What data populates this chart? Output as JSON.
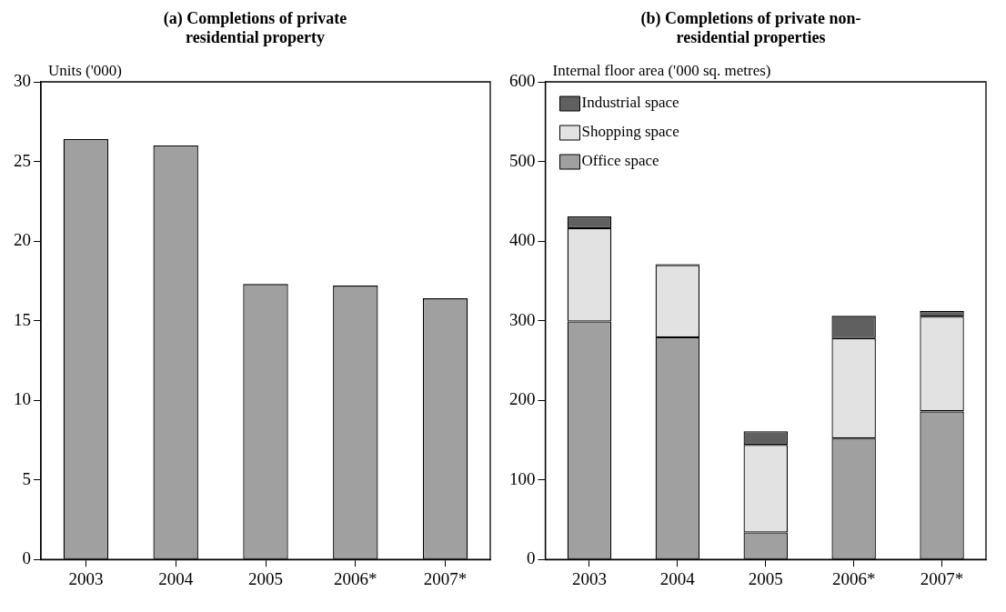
{
  "chart_data": [
    {
      "type": "bar",
      "title": "(a) Completions of private residential property",
      "ylabel": "Units ('000)",
      "categories": [
        "2003",
        "2004",
        "2005",
        "2006*",
        "2007*"
      ],
      "values": [
        26.4,
        26.0,
        17.3,
        17.2,
        16.4
      ],
      "color": "#a0a0a0",
      "ylim": [
        0,
        30
      ],
      "yticks": [
        0,
        5,
        10,
        15,
        20,
        25,
        30
      ],
      "grid": false
    },
    {
      "type": "bar",
      "title": "(b) Completions of private non-residential properties",
      "ylabel": "Internal floor area ('000 sq. metres)",
      "categories": [
        "2003",
        "2004",
        "2005",
        "2006*",
        "2007*"
      ],
      "stacked": true,
      "series": [
        {
          "name": "Office space",
          "color": "#a0a0a0",
          "values": [
            299,
            279,
            34,
            152,
            186
          ]
        },
        {
          "name": "Shopping space",
          "color": "#e2e2e2",
          "values": [
            117,
            91,
            110,
            126,
            119
          ]
        },
        {
          "name": "Industrial space",
          "color": "#606060",
          "values": [
            15,
            1,
            17,
            28,
            7
          ]
        }
      ],
      "ylim": [
        0,
        600
      ],
      "yticks": [
        0,
        100,
        200,
        300,
        400,
        500,
        600
      ],
      "grid": false,
      "legend": "top left"
    }
  ]
}
